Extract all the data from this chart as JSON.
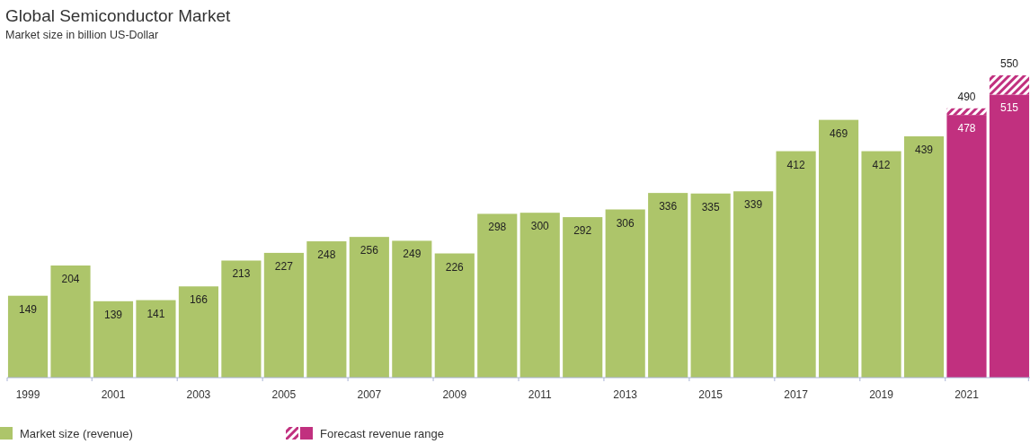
{
  "chart_data": {
    "type": "bar",
    "title": "Global Semiconductor Market",
    "subtitle": "Market size in billion US-Dollar",
    "categories": [
      "1999",
      null,
      "2001",
      null,
      "2003",
      null,
      "2005",
      null,
      "2007",
      null,
      "2009",
      null,
      "2011",
      null,
      "2013",
      null,
      "2015",
      null,
      "2017",
      null,
      "2019",
      null,
      "2021",
      null
    ],
    "stacked": true,
    "series": [
      {
        "name": "Market size (revenue)",
        "color": "#adc56a",
        "values": [
          149,
          204,
          139,
          141,
          166,
          213,
          227,
          248,
          256,
          249,
          226,
          298,
          300,
          292,
          306,
          336,
          335,
          339,
          412,
          469,
          412,
          439,
          null,
          null
        ],
        "value_labels": [
          "149",
          "204",
          "139",
          "141",
          "166",
          "213",
          "227",
          "248",
          "256",
          "249",
          "226",
          "298",
          "300",
          "292",
          "306",
          "336",
          "335",
          "339",
          "412",
          "469",
          "412",
          "439",
          null,
          null
        ]
      },
      {
        "name": "Forecast revenue range",
        "color": "#c1307f",
        "values": [
          null,
          null,
          null,
          null,
          null,
          null,
          null,
          null,
          null,
          null,
          null,
          null,
          null,
          null,
          null,
          null,
          null,
          null,
          null,
          null,
          null,
          null,
          478,
          515
        ],
        "value_labels": [
          null,
          null,
          null,
          null,
          null,
          null,
          null,
          null,
          null,
          null,
          null,
          null,
          null,
          null,
          null,
          null,
          null,
          null,
          null,
          null,
          null,
          null,
          "478",
          "515"
        ]
      },
      {
        "color": "#c1307f",
        "values": [
          null,
          null,
          null,
          null,
          null,
          null,
          null,
          null,
          null,
          null,
          null,
          null,
          null,
          null,
          null,
          null,
          null,
          null,
          null,
          null,
          null,
          null,
          12,
          35
        ]
      }
    ],
    "totals": [
      null,
      null,
      null,
      null,
      null,
      null,
      null,
      null,
      null,
      null,
      null,
      null,
      null,
      null,
      null,
      null,
      null,
      null,
      null,
      null,
      null,
      null,
      "490",
      "550"
    ],
    "legend": "bottom left"
  }
}
